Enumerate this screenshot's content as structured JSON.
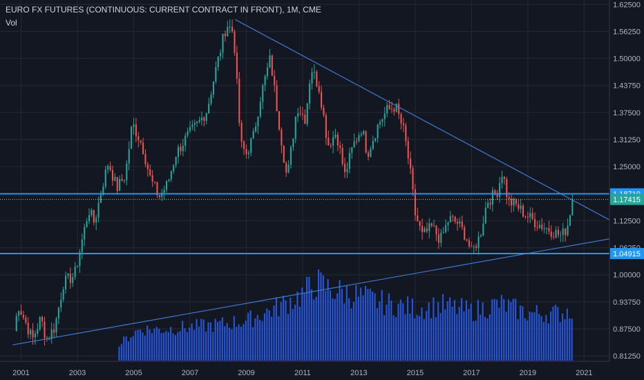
{
  "header": {
    "title": "EURO FX FUTURES (CONTINUOUS: CURRENT CONTRACT IN FRONT), 1M, CME",
    "indicator": "Vol"
  },
  "colors": {
    "background": "#131722",
    "grid": "#242836",
    "up": "#26a69a",
    "down": "#ef5350",
    "volume": "#2962ff",
    "level_line": "#2196f3",
    "trend_line": "#3d7bd1",
    "price_line": "#a5d6a7"
  },
  "chart_data": {
    "type": "candlestick",
    "x_ticks": [
      "2001",
      "2003",
      "2005",
      "2007",
      "2009",
      "2011",
      "2013",
      "2015",
      "2017",
      "2019",
      "2021"
    ],
    "y_ticks": [
      "1.62500",
      "1.56250",
      "1.50000",
      "1.43750",
      "1.37500",
      "1.31250",
      "1.25000",
      "1.18750",
      "1.12500",
      "1.06250",
      "1.00000",
      "0.93750",
      "0.87500",
      "0.81250"
    ],
    "ylim": [
      0.8,
      1.635
    ],
    "xlim": [
      2000.25,
      2021.9
    ],
    "anchors": [
      [
        2000.75,
        0.87
      ],
      [
        2000.9,
        0.93
      ],
      [
        2001.1,
        0.9
      ],
      [
        2001.4,
        0.85
      ],
      [
        2001.7,
        0.9
      ],
      [
        2001.9,
        0.85
      ],
      [
        2002.2,
        0.88
      ],
      [
        2002.5,
        0.98
      ],
      [
        2002.9,
        1.0
      ],
      [
        2003.1,
        1.06
      ],
      [
        2003.4,
        1.15
      ],
      [
        2003.6,
        1.12
      ],
      [
        2003.9,
        1.21
      ],
      [
        2004.1,
        1.26
      ],
      [
        2004.4,
        1.2
      ],
      [
        2004.7,
        1.23
      ],
      [
        2004.95,
        1.35
      ],
      [
        2005.3,
        1.3
      ],
      [
        2005.6,
        1.22
      ],
      [
        2005.9,
        1.18
      ],
      [
        2006.2,
        1.21
      ],
      [
        2006.5,
        1.28
      ],
      [
        2006.9,
        1.32
      ],
      [
        2007.3,
        1.35
      ],
      [
        2007.6,
        1.38
      ],
      [
        2007.9,
        1.47
      ],
      [
        2008.3,
        1.58
      ],
      [
        2008.55,
        1.56
      ],
      [
        2008.8,
        1.3
      ],
      [
        2009.0,
        1.28
      ],
      [
        2009.25,
        1.32
      ],
      [
        2009.5,
        1.41
      ],
      [
        2009.85,
        1.5
      ],
      [
        2010.1,
        1.38
      ],
      [
        2010.45,
        1.22
      ],
      [
        2010.8,
        1.39
      ],
      [
        2011.1,
        1.36
      ],
      [
        2011.3,
        1.48
      ],
      [
        2011.6,
        1.43
      ],
      [
        2011.9,
        1.3
      ],
      [
        2012.2,
        1.33
      ],
      [
        2012.5,
        1.23
      ],
      [
        2012.8,
        1.3
      ],
      [
        2013.1,
        1.34
      ],
      [
        2013.3,
        1.28
      ],
      [
        2013.7,
        1.35
      ],
      [
        2014.0,
        1.38
      ],
      [
        2014.3,
        1.39
      ],
      [
        2014.6,
        1.33
      ],
      [
        2014.8,
        1.25
      ],
      [
        2015.0,
        1.14
      ],
      [
        2015.25,
        1.09
      ],
      [
        2015.6,
        1.11
      ],
      [
        2015.9,
        1.08
      ],
      [
        2016.2,
        1.13
      ],
      [
        2016.5,
        1.12
      ],
      [
        2016.8,
        1.09
      ],
      [
        2017.0,
        1.05
      ],
      [
        2017.3,
        1.09
      ],
      [
        2017.55,
        1.17
      ],
      [
        2017.9,
        1.19
      ],
      [
        2018.1,
        1.24
      ],
      [
        2018.3,
        1.17
      ],
      [
        2018.6,
        1.16
      ],
      [
        2018.9,
        1.14
      ],
      [
        2019.3,
        1.12
      ],
      [
        2019.6,
        1.11
      ],
      [
        2019.9,
        1.1
      ],
      [
        2020.2,
        1.09
      ],
      [
        2020.4,
        1.11
      ],
      [
        2020.58,
        1.17415
      ]
    ],
    "volume_profile": [
      [
        2004.4,
        0.0
      ],
      [
        2004.5,
        0.18
      ],
      [
        2005.2,
        0.33
      ],
      [
        2006.0,
        0.33
      ],
      [
        2008.0,
        0.38
      ],
      [
        2009.0,
        0.42
      ],
      [
        2010.0,
        0.55
      ],
      [
        2011.0,
        0.7
      ],
      [
        2011.5,
        0.82
      ],
      [
        2012.0,
        0.75
      ],
      [
        2013.0,
        0.68
      ],
      [
        2014.0,
        0.6
      ],
      [
        2015.0,
        0.55
      ],
      [
        2016.0,
        0.58
      ],
      [
        2017.0,
        0.52
      ],
      [
        2018.0,
        0.6
      ],
      [
        2019.0,
        0.5
      ],
      [
        2020.2,
        0.5
      ],
      [
        2020.58,
        0.55
      ]
    ],
    "levels": [
      1.1871,
      1.04915
    ],
    "last_price": 1.17415,
    "price_labels": {
      "upper_level": "1.18710",
      "lower_level": "1.04915",
      "last": "1.17415"
    },
    "trendlines": [
      {
        "x1": 2008.6,
        "y1": 1.59,
        "x2": 2021.9,
        "y2": 1.127
      },
      {
        "x1": 2000.7,
        "y1": 0.838,
        "x2": 2021.9,
        "y2": 1.083
      }
    ]
  }
}
